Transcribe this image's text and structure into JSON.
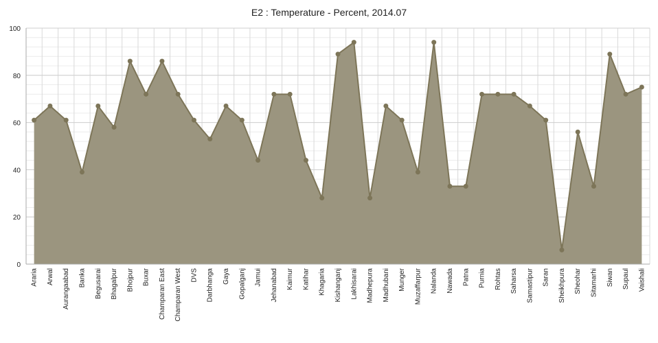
{
  "chart_data": {
    "type": "area",
    "title": "E2 : Temperature - Percent, 2014.07",
    "xlabel": "",
    "ylabel": "",
    "ylim": [
      0,
      100
    ],
    "yticks": [
      0,
      20,
      40,
      60,
      80,
      100
    ],
    "grid": true,
    "legend": "none",
    "colors": {
      "fill": "#9b957f",
      "line": "#7d7558",
      "marker": "#7d7558",
      "grid": "#d9d9d9",
      "axis": "#aaaaaa"
    },
    "categories": [
      "Araria",
      "Arwal",
      "Aurangaabad",
      "Banka",
      "Begusarai",
      "Bhagalpur",
      "Bhojpur",
      "Buxar",
      "Champaran East",
      "Champaran West",
      "DVS",
      "Darbhanga",
      "Gaya",
      "Gopalganj",
      "Jamui",
      "Jehanabad",
      "Kaimur",
      "Katihar",
      "Khagaria",
      "Kishanganj",
      "Lakhisarai",
      "Madhepura",
      "Madhubani",
      "Munger",
      "Muzaffarpur",
      "Nalanda",
      "Nawada",
      "Patna",
      "Purnia",
      "Rohtas",
      "Saharsa",
      "Samastipur",
      "Saran",
      "Sheikhpura",
      "Sheohar",
      "Sitamarhi",
      "Siwan",
      "Supaul",
      "Vaishali"
    ],
    "series": [
      {
        "values": [
          61,
          67,
          61,
          39,
          67,
          58,
          86,
          72,
          86,
          72,
          61,
          53,
          67,
          61,
          44,
          72,
          72,
          44,
          28,
          89,
          94,
          28,
          67,
          61,
          39,
          94,
          33,
          33,
          72,
          72,
          72,
          67,
          61,
          6,
          56,
          33,
          89,
          72,
          75
        ]
      }
    ]
  }
}
